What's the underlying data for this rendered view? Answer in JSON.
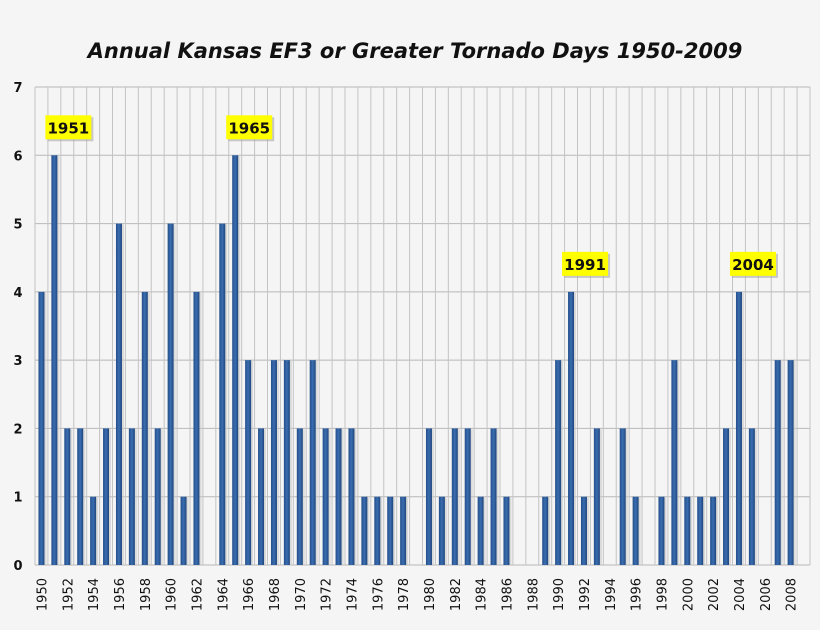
{
  "chart_data": {
    "type": "bar",
    "title": "Annual Kansas EF3 or Greater Tornado Days 1950-2009",
    "xlabel": "",
    "ylabel": "",
    "ylim": [
      0,
      7
    ],
    "yticks": [
      0,
      1,
      2,
      3,
      4,
      5,
      6,
      7
    ],
    "grid": true,
    "bar_color": "#3a6db0",
    "callout_color": "#ffff00",
    "categories": [
      1950,
      1951,
      1952,
      1953,
      1954,
      1955,
      1956,
      1957,
      1958,
      1959,
      1960,
      1961,
      1962,
      1963,
      1964,
      1965,
      1966,
      1967,
      1968,
      1969,
      1970,
      1971,
      1972,
      1973,
      1974,
      1975,
      1976,
      1977,
      1978,
      1979,
      1980,
      1981,
      1982,
      1983,
      1984,
      1985,
      1986,
      1987,
      1988,
      1989,
      1990,
      1991,
      1992,
      1993,
      1994,
      1995,
      1996,
      1997,
      1998,
      1999,
      2000,
      2001,
      2002,
      2003,
      2004,
      2005,
      2006,
      2007,
      2008,
      2009
    ],
    "values": [
      4,
      6,
      2,
      2,
      1,
      2,
      5,
      2,
      4,
      2,
      5,
      1,
      4,
      0,
      5,
      6,
      3,
      2,
      3,
      3,
      2,
      3,
      2,
      2,
      2,
      1,
      1,
      1,
      1,
      0,
      2,
      1,
      2,
      2,
      1,
      2,
      1,
      0,
      0,
      1,
      3,
      4,
      1,
      2,
      0,
      2,
      1,
      0,
      1,
      3,
      1,
      1,
      1,
      2,
      4,
      2,
      0,
      3,
      3,
      0
    ],
    "xtick_labels": [
      "1950",
      "1952",
      "1954",
      "1956",
      "1958",
      "1960",
      "1962",
      "1964",
      "1966",
      "1968",
      "1970",
      "1972",
      "1974",
      "1976",
      "1978",
      "1980",
      "1982",
      "1984",
      "1986",
      "1988",
      "1990",
      "1992",
      "1994",
      "1996",
      "1998",
      "2000",
      "2002",
      "2004",
      "2006",
      "2008"
    ],
    "annotations": [
      {
        "text": "1951",
        "year": 1951
      },
      {
        "text": "1965",
        "year": 1965
      },
      {
        "text": "1991",
        "year": 1991
      },
      {
        "text": "2004",
        "year": 2004
      }
    ]
  }
}
